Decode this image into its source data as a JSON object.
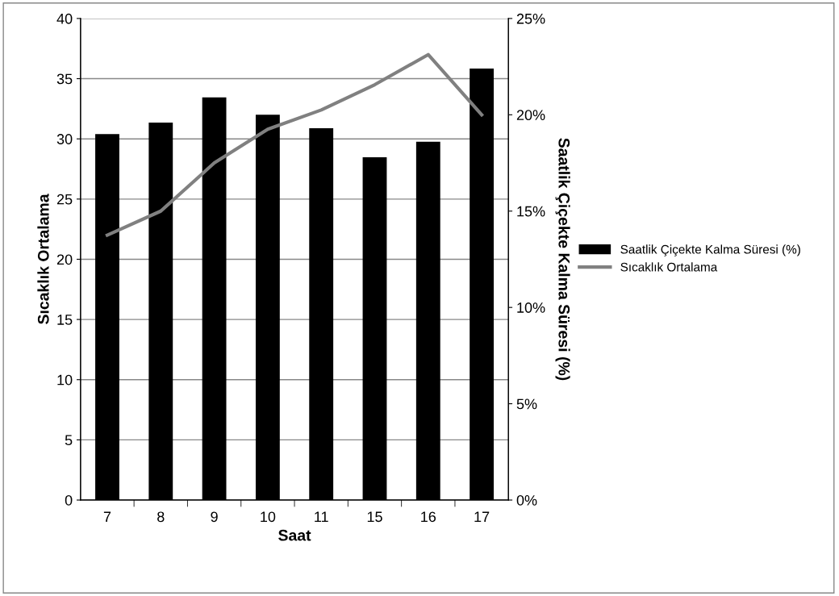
{
  "chart_data": {
    "type": "bar",
    "xlabel": "Saat",
    "ylabel": "Sıcaklık Ortalama",
    "y2label": "Saatlik Çiçekte Kalma Süresi (%)",
    "categories": [
      "7",
      "8",
      "9",
      "10",
      "11",
      "15",
      "16",
      "17"
    ],
    "series": [
      {
        "name": "Saatlik Çiçekte Kalma Süresi (%)",
        "axis": "y2",
        "color": "#000000",
        "values": [
          19.0,
          19.6,
          20.9,
          20.0,
          19.3,
          17.8,
          18.6,
          22.4
        ]
      },
      {
        "name": "Sıcaklık Ortalama",
        "type": "line",
        "axis": "y",
        "color": "#808080",
        "values": [
          22.0,
          24.0,
          28.0,
          30.8,
          32.4,
          34.5,
          37.0,
          32.0
        ]
      }
    ],
    "ylim": [
      0,
      40
    ],
    "yticks": [
      0,
      5,
      10,
      15,
      20,
      25,
      30,
      35,
      40
    ],
    "y2lim": [
      0,
      25
    ],
    "y2ticks": [
      {
        "value": 0,
        "label": "0%"
      },
      {
        "value": 5,
        "label": "5%"
      },
      {
        "value": 10,
        "label": "10%"
      },
      {
        "value": 15,
        "label": "15%"
      },
      {
        "value": 20,
        "label": "20%"
      },
      {
        "value": 25,
        "label": "25%"
      }
    ],
    "grid": "y",
    "legend": "right",
    "marker": "none",
    "line_style": "solid"
  }
}
